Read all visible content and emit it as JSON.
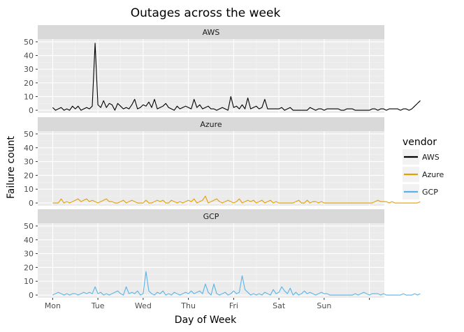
{
  "chart_data": {
    "type": "line",
    "title": "Outages across the week",
    "xlabel": "Day of Week",
    "ylabel": "Failure count",
    "x_ticks": [
      "Mon",
      "Tue",
      "Wed",
      "Thu",
      "Fri",
      "Sat",
      "Sun"
    ],
    "x_tick_values": [
      0,
      1,
      2,
      3,
      4,
      5,
      6
    ],
    "xlim": [
      -0.33,
      7.33
    ],
    "ylim": [
      -2,
      52
    ],
    "y_ticks": [
      0,
      10,
      20,
      30,
      40,
      50
    ],
    "facet_by": "vendor",
    "legend": {
      "title": "vendor",
      "position": "right"
    },
    "grid": true,
    "x_step": 0.0625,
    "series": [
      {
        "name": "AWS",
        "color": "#000000",
        "values": [
          2,
          0,
          1,
          2,
          0,
          1,
          0,
          3,
          1,
          3,
          0,
          1,
          2,
          1,
          3,
          49,
          4,
          2,
          7,
          2,
          5,
          4,
          0,
          5,
          3,
          1,
          2,
          1,
          4,
          8,
          1,
          2,
          4,
          3,
          6,
          2,
          8,
          1,
          2,
          3,
          5,
          2,
          1,
          0,
          3,
          1,
          2,
          3,
          2,
          1,
          8,
          2,
          4,
          1,
          2,
          3,
          1,
          1,
          0,
          1,
          2,
          1,
          0,
          10,
          2,
          3,
          1,
          4,
          1,
          9,
          1,
          2,
          3,
          1,
          2,
          8,
          1,
          1,
          1,
          1,
          1,
          2,
          0,
          1,
          2,
          0,
          0,
          0,
          0,
          0,
          0,
          2,
          1,
          0,
          1,
          1,
          0,
          1,
          1,
          1,
          1,
          1,
          0,
          0,
          1,
          1,
          1,
          0,
          0,
          0,
          0,
          0,
          0,
          1,
          1,
          0,
          1,
          1,
          0,
          1,
          1,
          1,
          1,
          0,
          1,
          1,
          0,
          1,
          3,
          5,
          7
        ]
      },
      {
        "name": "Azure",
        "color": "#E69F00",
        "values": [
          0,
          0,
          0,
          3,
          0,
          1,
          0,
          1,
          2,
          3,
          1,
          2,
          3,
          1,
          2,
          1,
          0,
          1,
          2,
          3,
          1,
          1,
          0,
          0,
          1,
          2,
          0,
          1,
          2,
          1,
          0,
          0,
          0,
          2,
          0,
          0,
          1,
          2,
          1,
          2,
          0,
          0,
          2,
          1,
          0,
          1,
          0,
          1,
          2,
          1,
          3,
          0,
          1,
          2,
          5,
          0,
          1,
          2,
          3,
          1,
          0,
          1,
          2,
          1,
          0,
          1,
          3,
          0,
          1,
          2,
          1,
          2,
          0,
          1,
          2,
          0,
          1,
          2,
          0,
          1,
          0,
          0,
          0,
          0,
          0,
          0,
          1,
          2,
          0,
          0,
          2,
          0,
          1,
          1,
          0,
          1,
          0,
          0,
          0,
          0,
          0,
          0,
          0,
          0,
          0,
          0,
          0,
          0,
          0,
          0,
          0,
          0,
          0,
          0,
          1,
          2,
          1,
          1,
          1,
          0,
          1,
          0,
          0,
          0,
          0,
          0,
          0,
          0,
          0,
          0,
          1
        ]
      },
      {
        "name": "GCP",
        "color": "#56B4E9",
        "values": [
          0,
          1,
          2,
          1,
          0,
          1,
          0,
          1,
          1,
          0,
          1,
          2,
          1,
          2,
          1,
          6,
          1,
          2,
          0,
          1,
          0,
          1,
          2,
          3,
          1,
          0,
          6,
          1,
          2,
          1,
          3,
          0,
          1,
          17,
          3,
          1,
          0,
          2,
          1,
          3,
          0,
          1,
          0,
          2,
          1,
          0,
          1,
          2,
          1,
          3,
          1,
          2,
          3,
          1,
          8,
          2,
          0,
          8,
          1,
          0,
          1,
          2,
          0,
          1,
          3,
          1,
          2,
          14,
          4,
          2,
          0,
          1,
          0,
          1,
          0,
          2,
          1,
          0,
          4,
          1,
          2,
          6,
          3,
          1,
          5,
          0,
          2,
          0,
          1,
          3,
          1,
          2,
          1,
          0,
          1,
          2,
          1,
          1,
          0,
          0,
          0,
          0,
          0,
          0,
          0,
          0,
          0,
          1,
          0,
          1,
          2,
          1,
          0,
          1,
          1,
          1,
          0,
          1,
          0,
          0,
          0,
          0,
          0,
          0,
          1,
          0,
          0,
          0,
          1,
          0,
          1
        ]
      }
    ]
  }
}
